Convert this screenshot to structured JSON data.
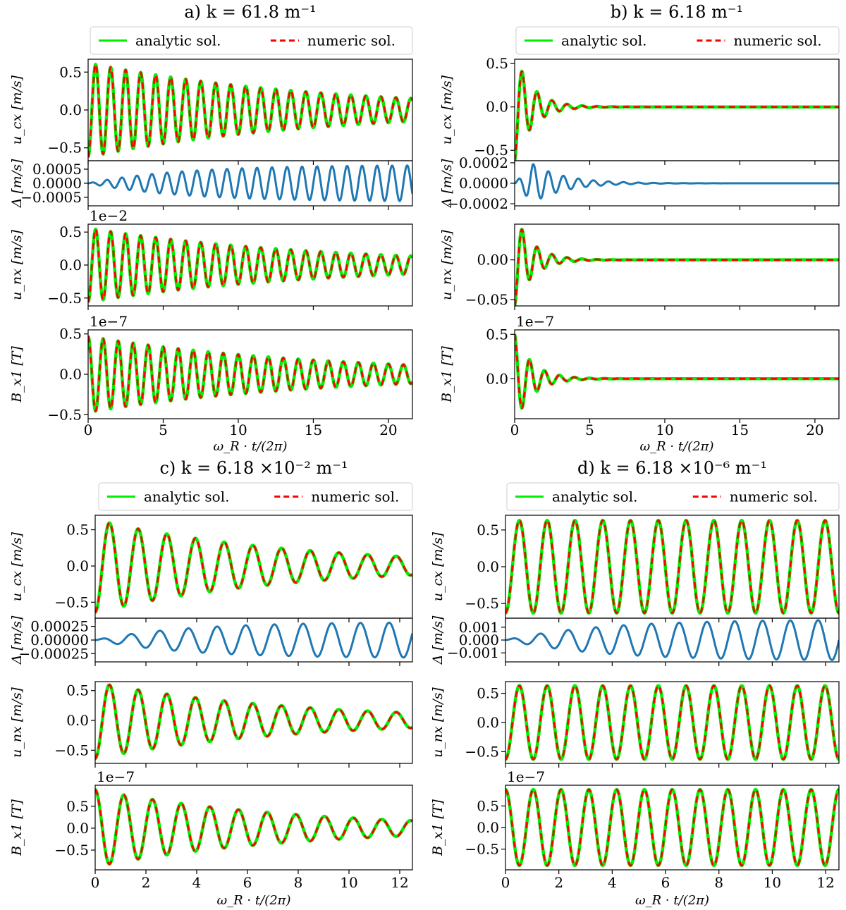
{
  "legend": {
    "analytic_label": "analytic sol.",
    "numeric_label": "numeric sol.",
    "analytic_color": "#00ee00",
    "numeric_color": "#ff0000",
    "delta_color": "#1f77b4"
  },
  "chart_data": [
    {
      "id": "a",
      "type": "line",
      "title": "a)  k =  61.8 m⁻¹",
      "xlabel": "ω_R · t/(2π)",
      "xlim": [
        0,
        21.6
      ],
      "xticks": [
        0,
        5,
        10,
        15,
        20
      ],
      "x_tick_labels": [
        "0",
        "5",
        "10",
        "15",
        "20"
      ],
      "legend": "top, above first subplot, two columns",
      "wave": {
        "cycles_per_x_unit": 1.0,
        "decay_per_x_unit": 0.065,
        "delta_amplitude_max": 0.00065
      },
      "subplots": [
        {
          "name": "u_cx",
          "ylabel": "u_cx [m/s]",
          "ylim": [
            -0.67,
            0.67
          ],
          "yticks": [
            -0.5,
            0.0,
            0.5
          ],
          "y_tick_labels": [
            "−0.5",
            "0.0",
            "0.5"
          ],
          "offset": "",
          "initial_amplitude": 0.62,
          "series": [
            "analytic sol.",
            "numeric sol."
          ]
        },
        {
          "name": "delta",
          "ylabel": "Δ [m/s]",
          "ylim": [
            -0.0008,
            0.0008
          ],
          "yticks": [
            -0.0005,
            0.0,
            0.0005
          ],
          "y_tick_labels": [
            "−0.0005",
            "0.0000",
            "0.0005"
          ],
          "offset": "",
          "series": [
            "Δ"
          ]
        },
        {
          "name": "u_nx",
          "ylabel": "u_nx [m/s]",
          "ylim": [
            -0.62,
            0.62
          ],
          "yticks": [
            -0.5,
            0.0,
            0.5
          ],
          "y_tick_labels": [
            "−0.5",
            "0.0",
            "0.5"
          ],
          "offset": "1e−2",
          "initial_amplitude": 0.56,
          "series": [
            "analytic sol.",
            "numeric sol."
          ]
        },
        {
          "name": "B_x1",
          "ylabel": "B_x1 [T]",
          "ylim": [
            -0.55,
            0.55
          ],
          "yticks": [
            -0.5,
            0.0,
            0.5
          ],
          "y_tick_labels": [
            "−0.5",
            "0.0",
            "0.5"
          ],
          "offset": "1e−7",
          "initial_amplitude": 0.47,
          "series": [
            "analytic sol.",
            "numeric sol."
          ]
        }
      ]
    },
    {
      "id": "b",
      "type": "line",
      "title": "b)  k =  6.18 m⁻¹",
      "xlabel": "ω_R · t/(2π)",
      "xlim": [
        0,
        21.6
      ],
      "xticks": [
        0,
        5,
        10,
        15,
        20
      ],
      "x_tick_labels": [
        "0",
        "5",
        "10",
        "15",
        "20"
      ],
      "legend": "top, above first subplot, two columns",
      "wave": {
        "cycles_per_x_unit": 1.0,
        "decay_per_x_unit": 0.85,
        "delta_amplitude_max": 0.00019
      },
      "subplots": [
        {
          "name": "u_cx",
          "ylabel": "u_cx [m/s]",
          "ylim": [
            -0.62,
            0.55
          ],
          "yticks": [
            -0.5,
            0.0,
            0.5
          ],
          "y_tick_labels": [
            "−0.5",
            "0.0",
            "0.5"
          ],
          "offset": "",
          "initial_amplitude": 0.62,
          "series": [
            "analytic sol.",
            "numeric sol."
          ]
        },
        {
          "name": "delta",
          "ylabel": "Δ [m/s]",
          "ylim": [
            -0.00022,
            0.00022
          ],
          "yticks": [
            -0.0002,
            0.0,
            0.0002
          ],
          "y_tick_labels": [
            "−0.0002",
            "0.0000",
            "0.0002"
          ],
          "offset": "",
          "series": [
            "Δ"
          ]
        },
        {
          "name": "u_nx",
          "ylabel": "u_nx [m/s]",
          "ylim": [
            -0.058,
            0.045
          ],
          "yticks": [
            -0.05,
            0.0
          ],
          "y_tick_labels": [
            "−0.05",
            "0.00"
          ],
          "offset": "",
          "initial_amplitude": 0.058,
          "series": [
            "analytic sol.",
            "numeric sol."
          ]
        },
        {
          "name": "B_x1",
          "ylabel": "B_x1 [T]",
          "ylim": [
            -0.45,
            0.55
          ],
          "yticks": [
            0.0,
            0.5
          ],
          "y_tick_labels": [
            "0.0",
            "0.5"
          ],
          "offset": "1e−7",
          "initial_amplitude": 0.5,
          "series": [
            "analytic sol.",
            "numeric sol."
          ]
        }
      ]
    },
    {
      "id": "c",
      "type": "line",
      "title": "c)  k =  6.18 ×10⁻² m⁻¹",
      "xlabel": "ω_R · t/(2π)",
      "xlim": [
        0,
        12.5
      ],
      "xticks": [
        0,
        2,
        4,
        6,
        8,
        10,
        12
      ],
      "x_tick_labels": [
        "0",
        "2",
        "4",
        "6",
        "8",
        "10",
        "12"
      ],
      "legend": "top, above first subplot, two columns",
      "wave": {
        "cycles_per_x_unit": 0.885,
        "decay_per_x_unit": 0.13,
        "delta_amplitude_max": 0.00033
      },
      "subplots": [
        {
          "name": "u_cx",
          "ylabel": "u_cx [m/s]",
          "ylim": [
            -0.72,
            0.7
          ],
          "yticks": [
            -0.5,
            0.0,
            0.5
          ],
          "y_tick_labels": [
            "−0.5",
            "0.0",
            "0.5"
          ],
          "offset": "",
          "initial_amplitude": 0.64,
          "series": [
            "analytic sol.",
            "numeric sol."
          ]
        },
        {
          "name": "delta",
          "ylabel": "Δ [m/s]",
          "ylim": [
            -0.0004,
            0.0004
          ],
          "yticks": [
            -0.00025,
            0.0,
            0.00025
          ],
          "y_tick_labels": [
            "−0.00025",
            "0.00000",
            "0.00025"
          ],
          "offset": "",
          "series": [
            "Δ"
          ]
        },
        {
          "name": "u_nx",
          "ylabel": "u_nx [m/s]",
          "ylim": [
            -0.72,
            0.65
          ],
          "yticks": [
            -0.5,
            0.0,
            0.5
          ],
          "y_tick_labels": [
            "−0.5",
            "0.0",
            "0.5"
          ],
          "offset": "",
          "initial_amplitude": 0.64,
          "series": [
            "analytic sol.",
            "numeric sol."
          ]
        },
        {
          "name": "B_x1",
          "ylabel": "B_x1 [T]",
          "ylim": [
            -0.95,
            0.98
          ],
          "yticks": [
            -0.5,
            0.0,
            0.5
          ],
          "y_tick_labels": [
            "−0.5",
            "0.0",
            "0.5"
          ],
          "offset": "1e−7",
          "initial_amplitude": 0.88,
          "series": [
            "analytic sol.",
            "numeric sol."
          ]
        }
      ]
    },
    {
      "id": "d",
      "type": "line",
      "title": "d)  k =  6.18 ×10⁻⁶ m⁻¹",
      "xlabel": "ω_R · t/(2π)",
      "xlim": [
        0,
        12.5
      ],
      "xticks": [
        0,
        2,
        4,
        6,
        8,
        10,
        12
      ],
      "x_tick_labels": [
        "0",
        "2",
        "4",
        "6",
        "8",
        "10",
        "12"
      ],
      "legend": "top, above first subplot, two columns",
      "wave": {
        "cycles_per_x_unit": 0.96,
        "decay_per_x_unit": 0.0,
        "delta_amplitude_max": 0.0016
      },
      "subplots": [
        {
          "name": "u_cx",
          "ylabel": "u_cx [m/s]",
          "ylim": [
            -0.7,
            0.7
          ],
          "yticks": [
            -0.5,
            0.0,
            0.5
          ],
          "y_tick_labels": [
            "−0.5",
            "0.0",
            "0.5"
          ],
          "offset": "",
          "initial_amplitude": 0.63,
          "series": [
            "analytic sol.",
            "numeric sol."
          ]
        },
        {
          "name": "delta",
          "ylabel": "Δ [m/s]",
          "ylim": [
            -0.0017,
            0.0017
          ],
          "yticks": [
            -0.001,
            0.0,
            0.001
          ],
          "y_tick_labels": [
            "−0.001",
            "0.000",
            "0.001"
          ],
          "offset": "",
          "series": [
            "Δ"
          ]
        },
        {
          "name": "u_nx",
          "ylabel": "u_nx [m/s]",
          "ylim": [
            -0.7,
            0.7
          ],
          "yticks": [
            -0.5,
            0.0,
            0.5
          ],
          "y_tick_labels": [
            "−0.5",
            "0.0",
            "0.5"
          ],
          "offset": "",
          "initial_amplitude": 0.63,
          "series": [
            "analytic sol.",
            "numeric sol."
          ]
        },
        {
          "name": "B_x1",
          "ylabel": "B_x1 [T]",
          "ylim": [
            -0.98,
            0.98
          ],
          "yticks": [
            -0.5,
            0.0,
            0.5
          ],
          "y_tick_labels": [
            "−0.5",
            "0.0",
            "0.5"
          ],
          "offset": "1e−7",
          "initial_amplitude": 0.88,
          "series": [
            "analytic sol.",
            "numeric sol."
          ]
        }
      ]
    }
  ]
}
